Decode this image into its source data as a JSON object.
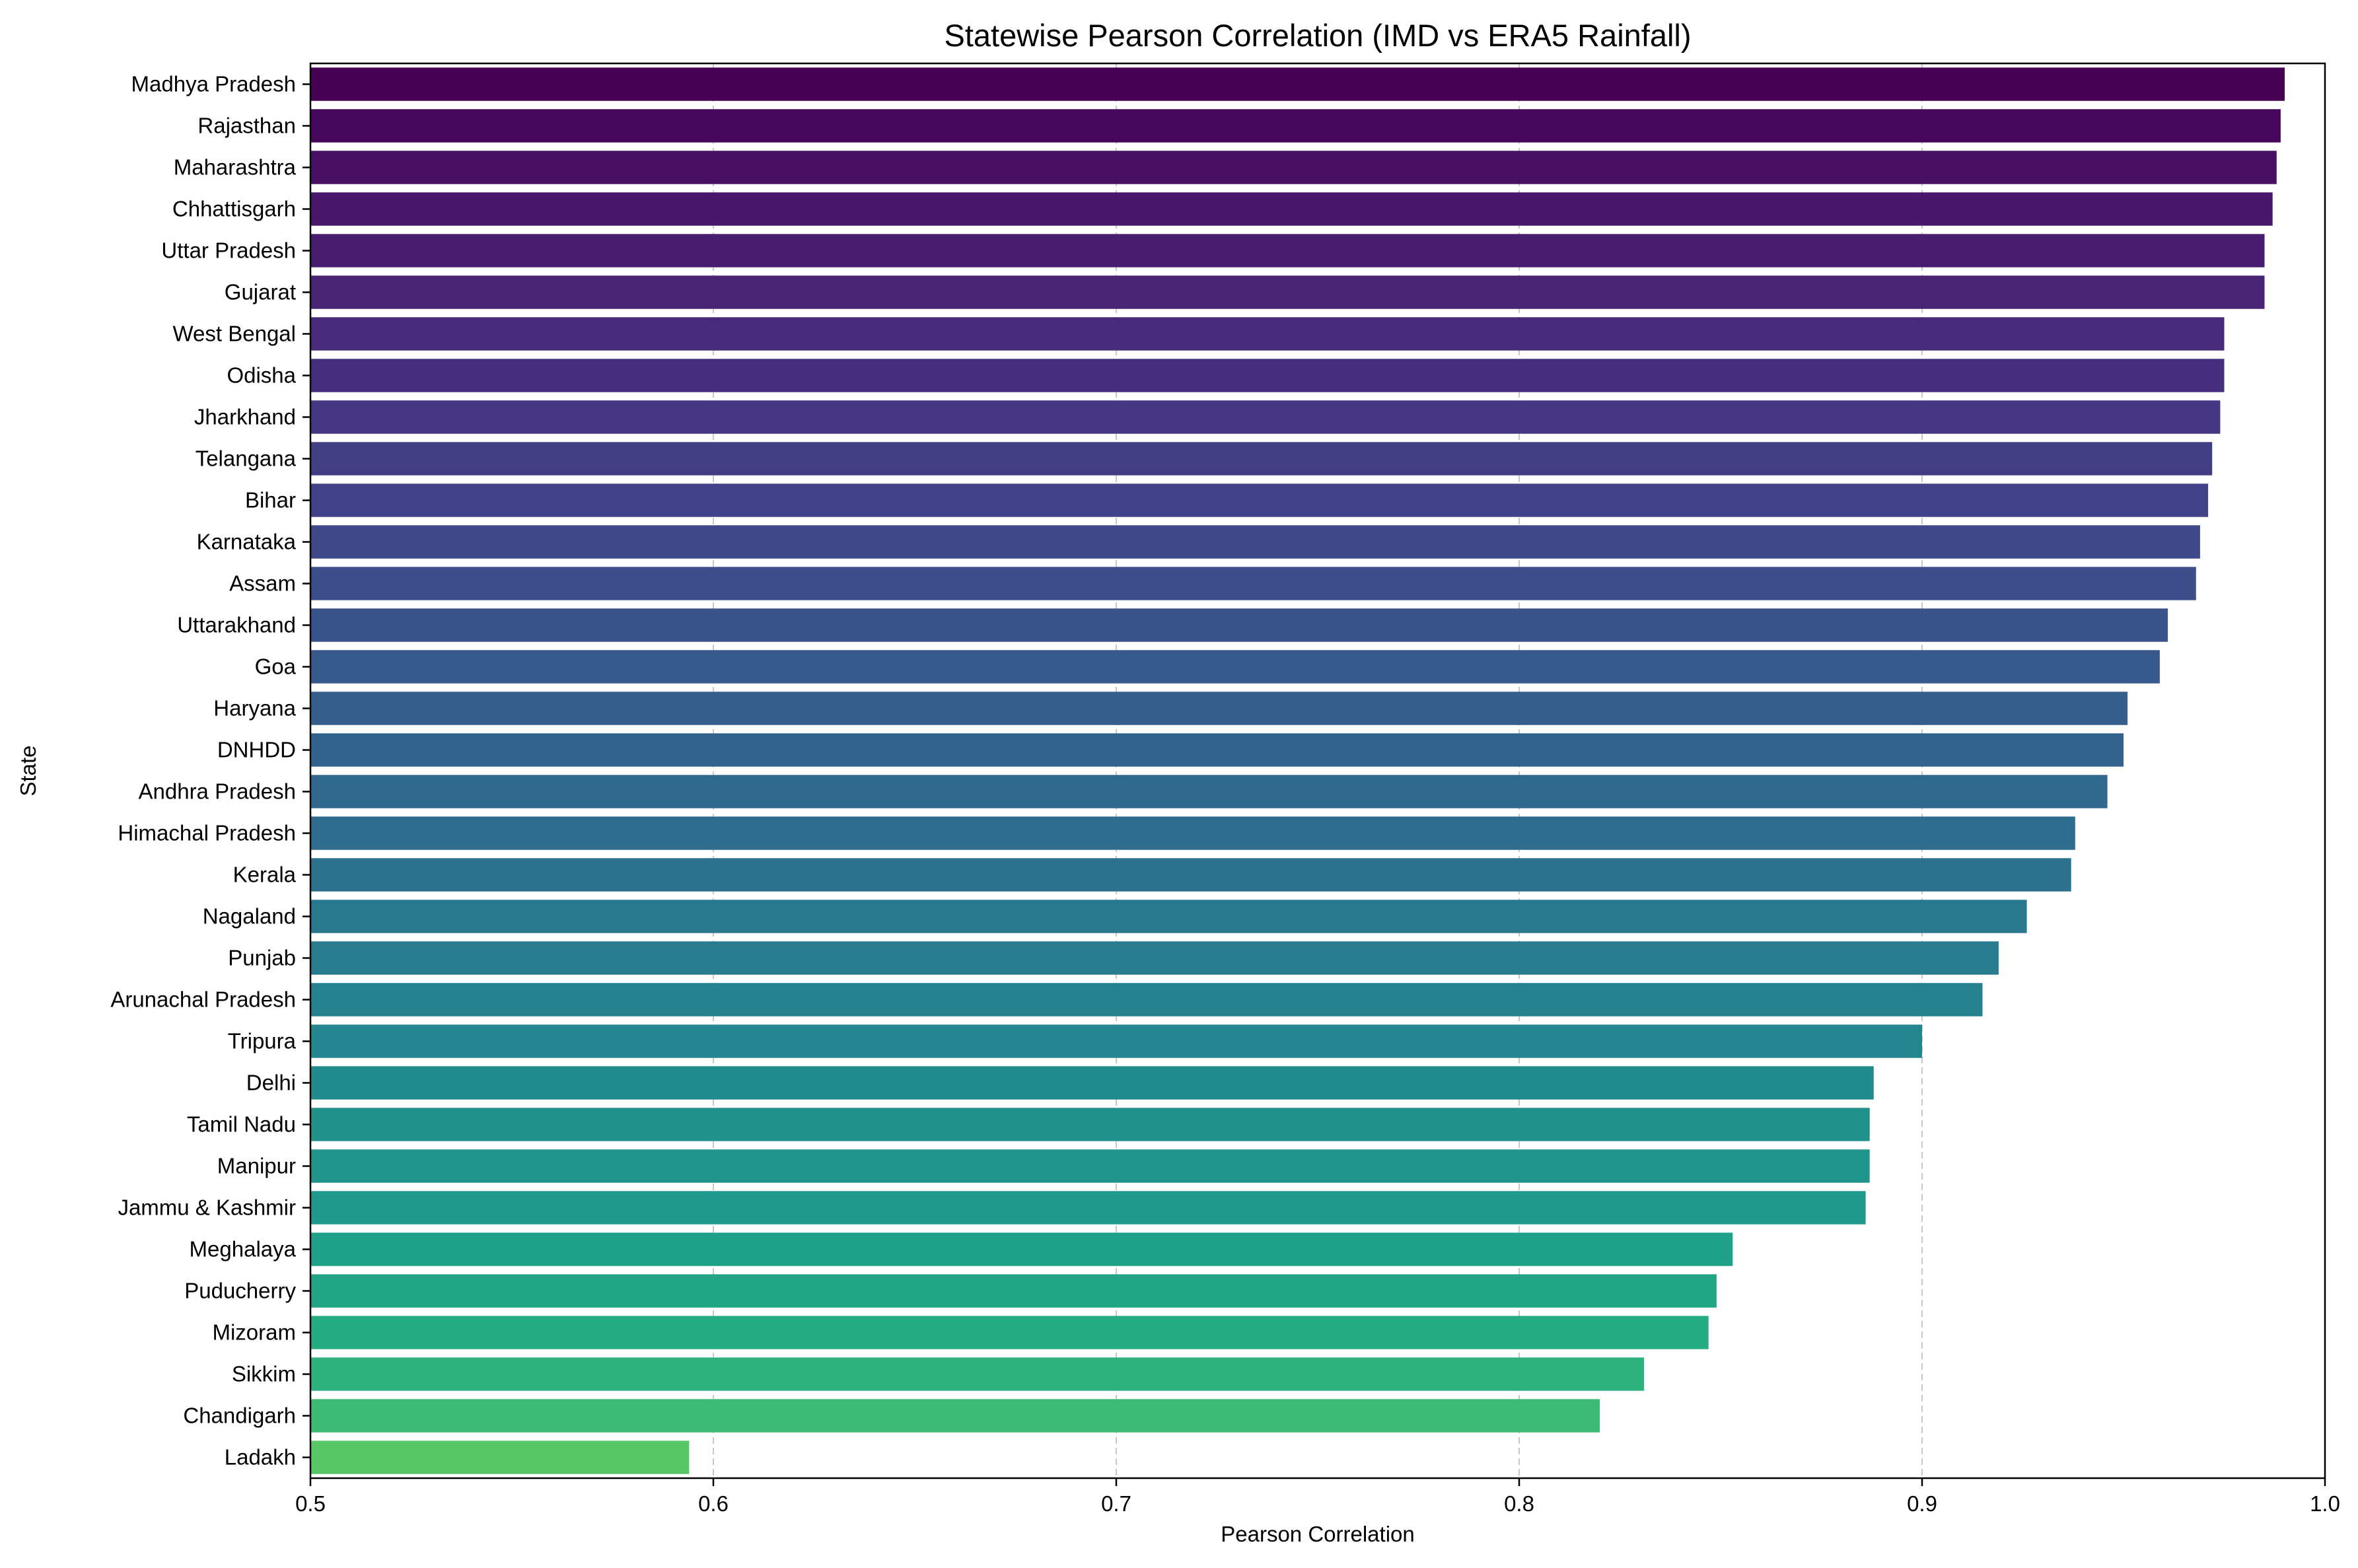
{
  "chart_data": {
    "type": "bar",
    "orientation": "horizontal",
    "title": "Statewise Pearson Correlation (IMD vs ERA5 Rainfall)",
    "xlabel": "Pearson Correlation",
    "ylabel": "State",
    "xlim": [
      0.5,
      1.0
    ],
    "xticks": [
      "0.5",
      "0.6",
      "0.7",
      "0.8",
      "0.9",
      "1.0"
    ],
    "grid": "x, dashed",
    "colormap": "viridis",
    "categories": [
      "Madhya Pradesh",
      "Rajasthan",
      "Maharashtra",
      "Chhattisgarh",
      "Uttar Pradesh",
      "Gujarat",
      "West Bengal",
      "Odisha",
      "Jharkhand",
      "Telangana",
      "Bihar",
      "Karnataka",
      "Assam",
      "Uttarakhand",
      "Goa",
      "Haryana",
      "DNHDD",
      "Andhra Pradesh",
      "Himachal Pradesh",
      "Kerala",
      "Nagaland",
      "Punjab",
      "Arunachal Pradesh",
      "Tripura",
      "Delhi",
      "Tamil Nadu",
      "Manipur",
      "Jammu & Kashmir",
      "Meghalaya",
      "Puducherry",
      "Mizoram",
      "Sikkim",
      "Chandigarh",
      "Ladakh"
    ],
    "values": [
      0.99,
      0.989,
      0.988,
      0.987,
      0.985,
      0.985,
      0.975,
      0.975,
      0.974,
      0.972,
      0.971,
      0.969,
      0.968,
      0.961,
      0.959,
      0.951,
      0.95,
      0.946,
      0.938,
      0.937,
      0.926,
      0.919,
      0.915,
      0.9,
      0.888,
      0.887,
      0.887,
      0.886,
      0.853,
      0.849,
      0.847,
      0.831,
      0.82,
      0.594
    ],
    "colors": [
      "#440154",
      "#46085c",
      "#471063",
      "#481769",
      "#481d6f",
      "#482475",
      "#472a7a",
      "#46307e",
      "#453781",
      "#433d84",
      "#414287",
      "#3f4889",
      "#3d4e8a",
      "#3a538b",
      "#38598c",
      "#355e8d",
      "#33638d",
      "#31688e",
      "#2e6d8e",
      "#2c728e",
      "#2a788e",
      "#287c8e",
      "#26818e",
      "#24868e",
      "#228b8d",
      "#21918c",
      "#1f958b",
      "#1f9a8a",
      "#1fa088",
      "#21a585",
      "#25ac82",
      "#2cb17e",
      "#3bbb75",
      "#58c765"
    ]
  }
}
